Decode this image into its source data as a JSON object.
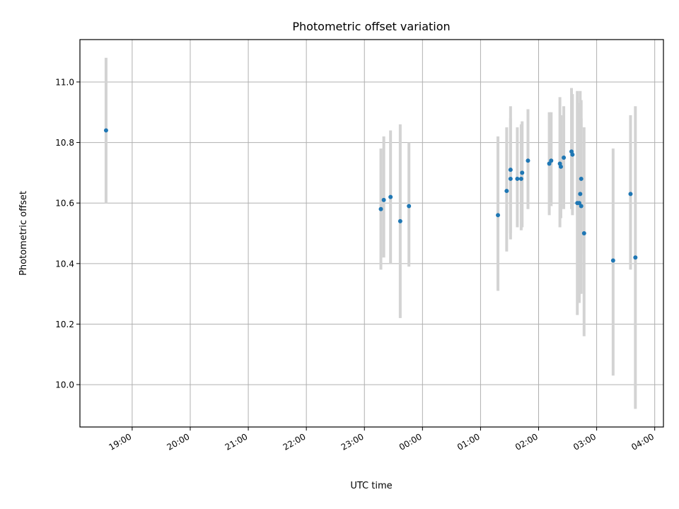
{
  "chart_data": {
    "type": "scatter",
    "title": "Photometric offset variation",
    "xlabel": "UTC time",
    "ylabel": "Photometric offset",
    "x_tick_labels": [
      "19:00",
      "20:00",
      "21:00",
      "22:00",
      "23:00",
      "00:00",
      "01:00",
      "02:00",
      "03:00",
      "04:00"
    ],
    "y_tick_labels": [
      "10.0",
      "10.2",
      "10.4",
      "10.6",
      "10.8",
      "11.0"
    ],
    "y_ticks": [
      10.0,
      10.2,
      10.4,
      10.6,
      10.8,
      11.0
    ],
    "xlim": [
      "18:06",
      "04:09"
    ],
    "ylim": [
      9.86,
      11.14
    ],
    "grid": true,
    "point_color": "#1f77b4",
    "errorbar_color": "#d3d3d3",
    "series": [
      {
        "points": [
          {
            "x": "18:33",
            "y": 10.84,
            "lo": 10.6,
            "hi": 11.08
          },
          {
            "x": "23:17",
            "y": 10.58,
            "lo": 10.38,
            "hi": 10.78
          },
          {
            "x": "23:20",
            "y": 10.61,
            "lo": 10.42,
            "hi": 10.82
          },
          {
            "x": "23:27",
            "y": 10.62,
            "lo": 10.4,
            "hi": 10.84
          },
          {
            "x": "23:37",
            "y": 10.54,
            "lo": 10.22,
            "hi": 10.86
          },
          {
            "x": "23:46",
            "y": 10.59,
            "lo": 10.39,
            "hi": 10.8
          },
          {
            "x": "01:18",
            "y": 10.56,
            "lo": 10.31,
            "hi": 10.82
          },
          {
            "x": "01:27",
            "y": 10.64,
            "lo": 10.44,
            "hi": 10.85
          },
          {
            "x": "01:31",
            "y": 10.71,
            "lo": 10.5,
            "hi": 10.92
          },
          {
            "x": "01:31",
            "y": 10.68,
            "lo": 10.48,
            "hi": 10.88
          },
          {
            "x": "01:38",
            "y": 10.68,
            "lo": 10.52,
            "hi": 10.85
          },
          {
            "x": "01:42",
            "y": 10.68,
            "lo": 10.51,
            "hi": 10.86
          },
          {
            "x": "01:43",
            "y": 10.7,
            "lo": 10.52,
            "hi": 10.87
          },
          {
            "x": "01:49",
            "y": 10.74,
            "lo": 10.58,
            "hi": 10.91
          },
          {
            "x": "02:11",
            "y": 10.73,
            "lo": 10.56,
            "hi": 10.9
          },
          {
            "x": "02:13",
            "y": 10.74,
            "lo": 10.59,
            "hi": 10.9
          },
          {
            "x": "02:22",
            "y": 10.73,
            "lo": 10.52,
            "hi": 10.95
          },
          {
            "x": "02:23",
            "y": 10.72,
            "lo": 10.55,
            "hi": 10.89
          },
          {
            "x": "02:26",
            "y": 10.75,
            "lo": 10.58,
            "hi": 10.92
          },
          {
            "x": "02:34",
            "y": 10.77,
            "lo": 10.58,
            "hi": 10.98
          },
          {
            "x": "02:35",
            "y": 10.76,
            "lo": 10.56,
            "hi": 10.96
          },
          {
            "x": "02:40",
            "y": 10.6,
            "lo": 10.23,
            "hi": 10.97
          },
          {
            "x": "02:42",
            "y": 10.6,
            "lo": 10.27,
            "hi": 10.93
          },
          {
            "x": "02:43",
            "y": 10.63,
            "lo": 10.3,
            "hi": 10.97
          },
          {
            "x": "02:44",
            "y": 10.68,
            "lo": 10.43,
            "hi": 10.94
          },
          {
            "x": "02:44",
            "y": 10.59,
            "lo": 10.3,
            "hi": 10.88
          },
          {
            "x": "02:47",
            "y": 10.5,
            "lo": 10.16,
            "hi": 10.85
          },
          {
            "x": "03:17",
            "y": 10.41,
            "lo": 10.03,
            "hi": 10.78
          },
          {
            "x": "03:35",
            "y": 10.63,
            "lo": 10.38,
            "hi": 10.89
          },
          {
            "x": "03:40",
            "y": 10.42,
            "lo": 9.92,
            "hi": 10.92
          }
        ]
      }
    ]
  }
}
